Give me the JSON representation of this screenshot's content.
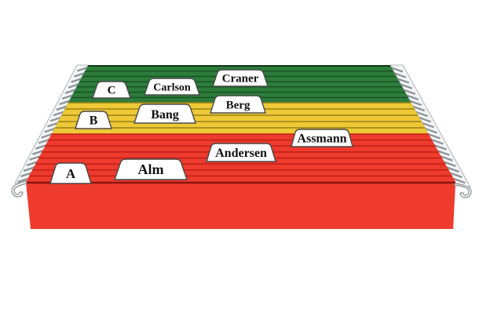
{
  "figure": {
    "background": "#ffffff",
    "sections": [
      {
        "name": "green",
        "color": "#2e7c3c",
        "separator_color": "#14511f",
        "folder_count": 7,
        "tabs": [
          {
            "label": "C"
          },
          {
            "label": "Carlson"
          },
          {
            "label": "Craner"
          }
        ]
      },
      {
        "name": "yellow",
        "color": "#eec935",
        "separator_color": "#96801a",
        "folder_count": 5,
        "tabs": [
          {
            "label": "B"
          },
          {
            "label": "Bang"
          },
          {
            "label": "Berg"
          }
        ]
      },
      {
        "name": "red",
        "color": "#ee3b2d",
        "separator_color": "#bb2119",
        "folder_count": 8,
        "tabs": [
          {
            "label": "A"
          },
          {
            "label": "Alm"
          },
          {
            "label": "Andersen"
          },
          {
            "label": "Assmann"
          }
        ]
      }
    ],
    "tab_style": {
      "fill": "#ffffff",
      "border": "#4a4a4a",
      "text_color": "#101010"
    },
    "front_fold_color": "#8c1410",
    "rail_color": "#f5f5f5",
    "rail_stripe_color": "#8e969d",
    "rail_edge_color": "#9aa1a8"
  }
}
